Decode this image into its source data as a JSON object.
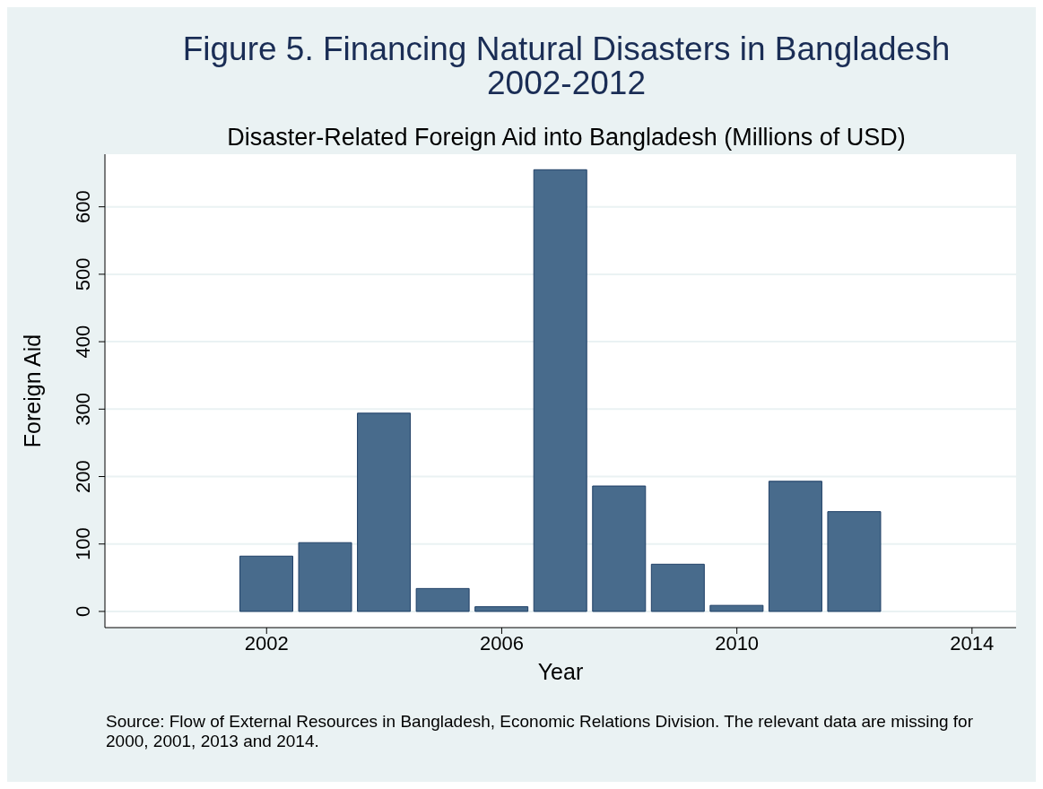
{
  "chart_data": {
    "type": "bar",
    "title": "Figure 5. Financing Natural Disasters in Bangladesh\n2002-2012",
    "subtitle": "Disaster-Related Foreign Aid into Bangladesh (Millions of USD)",
    "xlabel": "Year",
    "ylabel": "Foreign Aid",
    "x": [
      2002,
      2003,
      2004,
      2005,
      2006,
      2007,
      2008,
      2009,
      2010,
      2011,
      2012
    ],
    "values": [
      82,
      102,
      294,
      34,
      7,
      655,
      186,
      70,
      9,
      193,
      148
    ],
    "color": "#486b8c",
    "xlim": [
      1999.25,
      2014.75
    ],
    "xticks": [
      2002,
      2006,
      2010,
      2014
    ],
    "ylim": [
      -24,
      678
    ],
    "yticks": [
      0,
      100,
      200,
      300,
      400,
      500,
      600
    ],
    "grid": "y",
    "annotations": [
      "Source: Flow of External Resources in Bangladesh, Economic Relations Division. The relevant data are missing for 2000, 2001, 2013 and 2014."
    ]
  }
}
